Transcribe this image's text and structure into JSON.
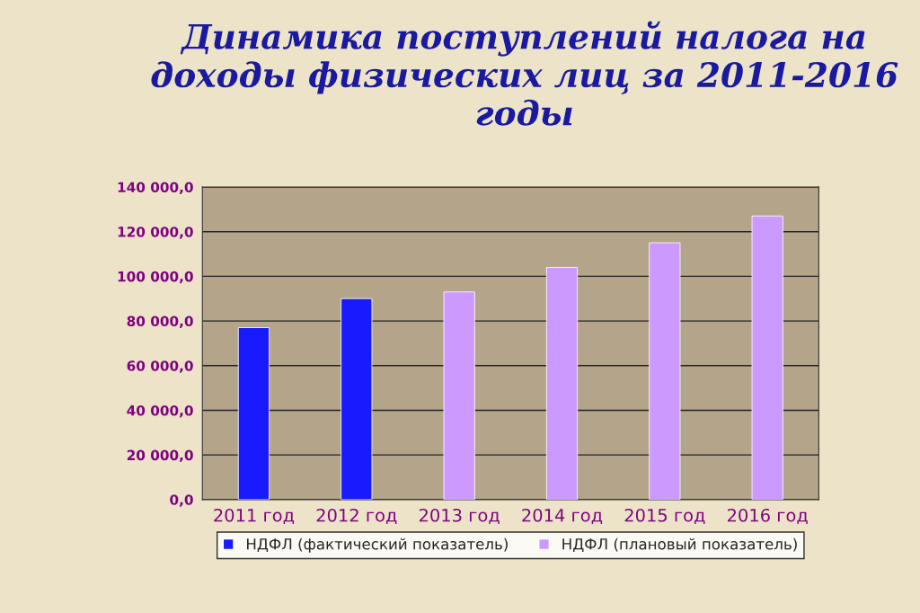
{
  "chart_data": {
    "type": "bar",
    "title": "Динамика поступлений налога на доходы физических лиц за 2011-2016 годы",
    "categories": [
      "2011 год",
      "2012 год",
      "2013 год",
      "2014 год",
      "2015 год",
      "2016 год"
    ],
    "series": [
      {
        "name": "НДФЛ (фактический показатель)",
        "color": "#1a1aff",
        "values": [
          77000,
          90000,
          null,
          null,
          null,
          null
        ]
      },
      {
        "name": "НДФЛ (плановый показатель)",
        "color": "#cc99ff",
        "values": [
          null,
          null,
          93000,
          104000,
          115000,
          127000
        ]
      }
    ],
    "ylim": [
      0,
      140000
    ],
    "yticks": [
      {
        "value": 0,
        "label": "0,0"
      },
      {
        "value": 20000,
        "label": "20 000,0"
      },
      {
        "value": 40000,
        "label": "40 000,0"
      },
      {
        "value": 60000,
        "label": "60 000,0"
      },
      {
        "value": 80000,
        "label": "80 000,0"
      },
      {
        "value": 100000,
        "label": "100 000,0"
      },
      {
        "value": 120000,
        "label": "120 000,0"
      },
      {
        "value": 140000,
        "label": "140 000,0"
      }
    ],
    "grid": "y",
    "legend": "bottom"
  }
}
